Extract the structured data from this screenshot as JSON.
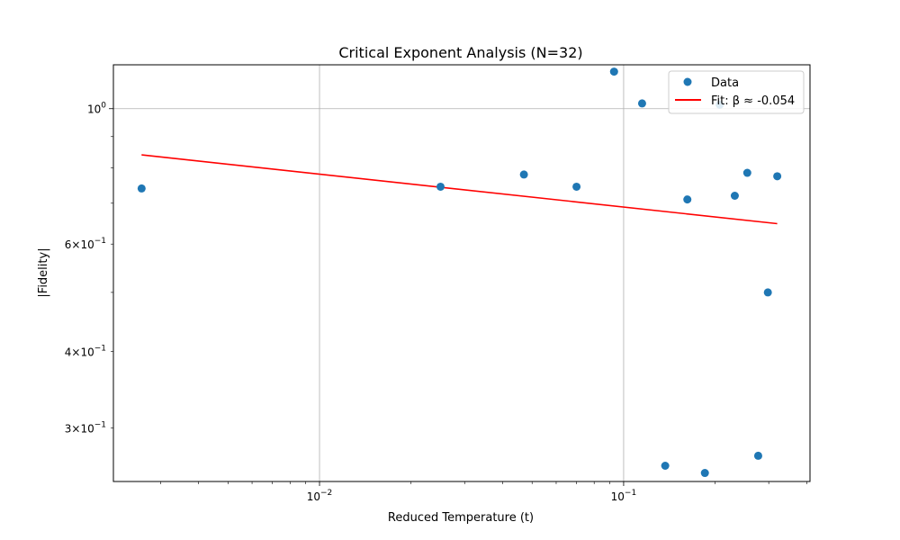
{
  "chart_data": {
    "type": "scatter",
    "title": "Critical Exponent Analysis (N=32)",
    "xlabel": "Reduced Temperature (t)",
    "ylabel": "|Fidelity|",
    "xscale": "log",
    "yscale": "log",
    "xlim": [
      0.0021,
      0.41
    ],
    "ylim": [
      0.245,
      1.18
    ],
    "grid": true,
    "legend_position": "top-right",
    "x_ticks": [
      {
        "value": 0.01,
        "label": "10^-2"
      },
      {
        "value": 0.1,
        "label": "10^-1"
      }
    ],
    "y_ticks": [
      {
        "value": 1.0,
        "label": "10^0"
      },
      {
        "value": 0.6,
        "label": "6×10^-1"
      },
      {
        "value": 0.4,
        "label": "4×10^-1"
      },
      {
        "value": 0.3,
        "label": "3×10^-1"
      }
    ],
    "series": [
      {
        "name": "Data",
        "kind": "scatter",
        "color": "#1f77b4",
        "x": [
          0.0026,
          0.025,
          0.047,
          0.07,
          0.093,
          0.115,
          0.137,
          0.162,
          0.185,
          0.207,
          0.232,
          0.255,
          0.277,
          0.298,
          0.32
        ],
        "y": [
          0.74,
          0.745,
          0.78,
          0.745,
          1.15,
          1.02,
          0.26,
          0.71,
          0.253,
          1.015,
          0.72,
          0.785,
          0.27,
          0.5,
          0.775
        ]
      },
      {
        "name": "Fit: β ≈ -0.054",
        "kind": "line",
        "color": "#ff0000",
        "x": [
          0.0026,
          0.32
        ],
        "y": [
          0.84,
          0.648
        ]
      }
    ]
  }
}
